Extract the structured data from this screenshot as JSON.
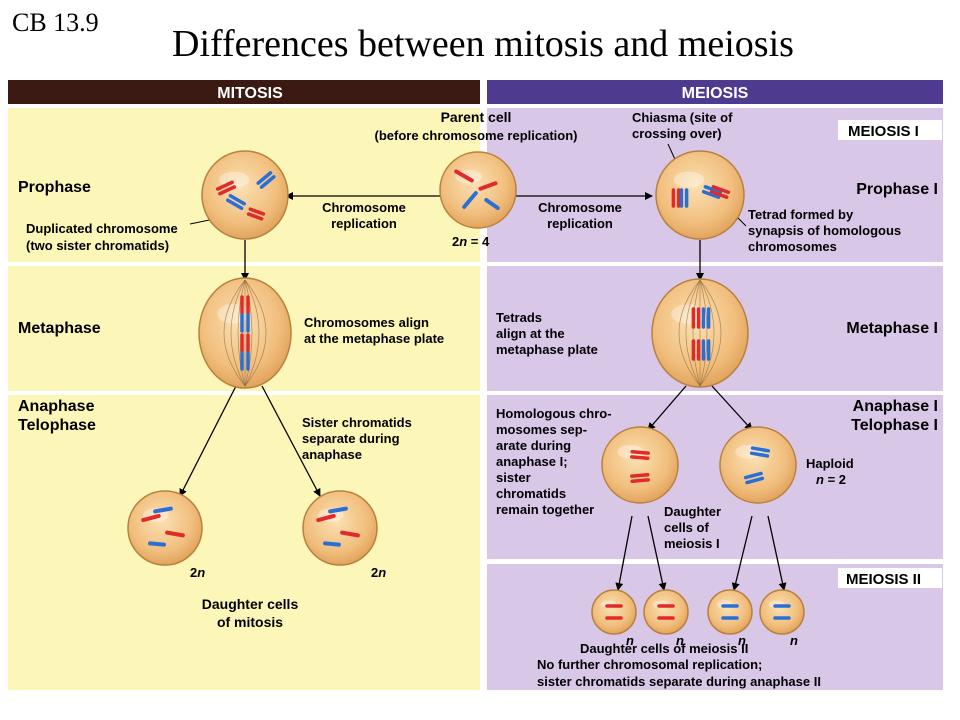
{
  "slide": {
    "tag": "CB 13.9",
    "title": "Differences between mitosis and meiosis"
  },
  "headers": {
    "mitosis": "MITOSIS",
    "meiosis": "MEIOSIS"
  },
  "sections": {
    "meiosis_1": "MEIOSIS I",
    "meiosis_2": "MEIOSIS II"
  },
  "mitosis_stages": {
    "prophase": "Prophase",
    "metaphase": "Metaphase",
    "anaphase": "Anaphase",
    "telophase": "Telophase"
  },
  "meiosis_stages": {
    "prophase": "Prophase I",
    "metaphase": "Metaphase I",
    "anaphase": "Anaphase I",
    "telophase": "Telophase I"
  },
  "parent": {
    "title": "Parent cell",
    "subtitle": "(before chromosome replication)",
    "ploidy_2": "2",
    "ploidy_n": "n",
    "ploidy_eq": " = 4"
  },
  "replication": {
    "line1": "Chromosome",
    "line2": "replication"
  },
  "mitosis_notes": {
    "duplicated_1": "Duplicated chromosome",
    "duplicated_2": "(two sister chromatids)",
    "align_1": "Chromosomes align",
    "align_2": "at the metaphase plate",
    "sister_1": "Sister chromatids",
    "sister_2": "separate during",
    "sister_3": "anaphase",
    "ploidy_left_2": "2",
    "ploidy_left_n": "n",
    "ploidy_right_2": "2",
    "ploidy_right_n": "n",
    "daughter_1": "Daughter cells",
    "daughter_2": "of mitosis"
  },
  "meiosis_notes": {
    "chiasma_1": "Chiasma (site of",
    "chiasma_2": "crossing over)",
    "tetrad_1": "Tetrad formed by",
    "tetrad_2": "synapsis of homologous",
    "tetrad_3": "chromosomes",
    "tetrads_align_1": "Tetrads",
    "tetrads_align_2": "align at the",
    "tetrads_align_3": "metaphase plate",
    "homologous": [
      "Homologous chro-",
      "mosomes sep-",
      "arate during",
      "anaphase I;",
      "sister",
      "chromatids",
      "remain together"
    ],
    "haploid_1": "Haploid",
    "haploid_n": "n",
    "haploid_eq": " = 2",
    "daughter_m1": [
      "Daughter",
      "cells of",
      "meiosis I"
    ],
    "n_labels": [
      "n",
      "n",
      "n",
      "n"
    ],
    "daughter_m2": "Daughter cells of meiosis II",
    "final_1": "No further chromosomal replication;",
    "final_2": "sister chromatids separate during anaphase II"
  },
  "colors": {
    "mitosis_bg": "#fcf6b9",
    "meiosis_bg": "#d9c7e8",
    "mitosis_header": "#3b1a14",
    "meiosis_header": "#4e3a8e",
    "cell_fill": "#f1be7d",
    "cell_edge": "#b8813e",
    "chromosome_red": "#e12a2a",
    "chromosome_blue": "#2a6fd6"
  }
}
